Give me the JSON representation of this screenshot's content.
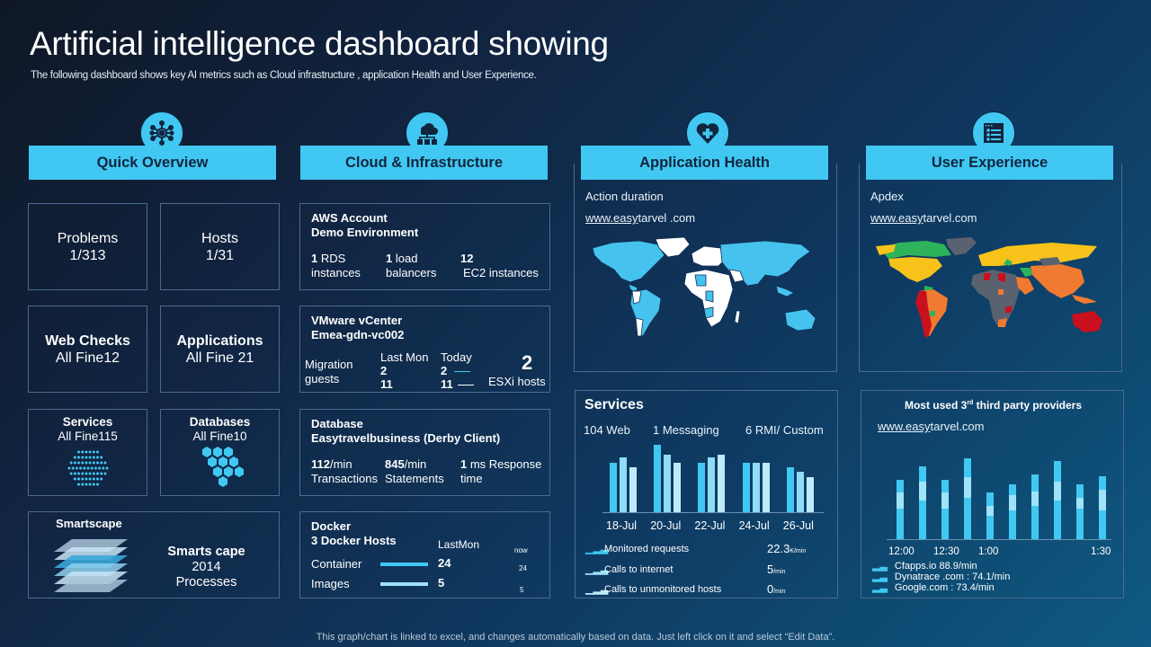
{
  "header": {
    "title": "Artificial intelligence dashboard showing",
    "subtitle": "The following dashboard shows key AI  metrics such as Cloud infrastructure , application Health and User Experience."
  },
  "sections": {
    "quick_overview": {
      "label": "Quick Overview",
      "icon": "network-hub-icon"
    },
    "cloud": {
      "label": "Cloud & Infrastructure",
      "icon": "cloud-network-icon"
    },
    "app_health": {
      "label": "Application Health",
      "icon": "heart-plus-icon"
    },
    "user_experience": {
      "label": "User Experience",
      "icon": "list-document-icon"
    }
  },
  "quick_overview": {
    "problems": {
      "label": "Problems",
      "value": "1/313"
    },
    "hosts": {
      "label": "Hosts",
      "value": "1/31"
    },
    "web_checks": {
      "label": "Web Checks",
      "value": "All Fine12"
    },
    "applications": {
      "label": "Applications",
      "value": "All Fine 21"
    },
    "services": {
      "label": "Services",
      "value": "All Fine115"
    },
    "databases": {
      "label": "Databases",
      "value": "All Fine10"
    },
    "smartscape": {
      "heading": "Smartscape",
      "label": "Smarts cape",
      "value": "2014",
      "unit": "Processes"
    }
  },
  "cloud": {
    "aws": {
      "title1": "AWS Account",
      "title2": "Demo Environment",
      "metrics": [
        {
          "num": "1",
          "text1": " RDS",
          "text2": "instances"
        },
        {
          "num": "1",
          "text1": " load",
          "text2": "balancers"
        },
        {
          "num": "12",
          "text1": "",
          "text2": "EC2 instances"
        }
      ]
    },
    "vmware": {
      "title1": "VMware vCenter",
      "title2": "Emea-gdn-vc002",
      "migration_label1": "Migration",
      "migration_label2": "guests",
      "last_mon_label": "Last Mon",
      "last_mon_v1": "2",
      "last_mon_v2": "11",
      "today_label": "Today",
      "today_v1": "2",
      "today_v2": "11",
      "esxi_value": "2",
      "esxi_label": "ESXi hosts"
    },
    "database": {
      "title1": "Database",
      "title2": "Easytravelbusiness  (Derby Client)",
      "metrics": [
        {
          "num": "112",
          "unit": "/min",
          "label": "Transactions"
        },
        {
          "num": "845",
          "unit": "/min",
          "label": "Statements"
        },
        {
          "num": "1",
          "unit": " ms Response",
          "label": "time"
        }
      ]
    },
    "docker": {
      "title1": "Docker",
      "title2": "3 Docker Hosts",
      "last_mon_label": "LastMon",
      "now_label": "now",
      "rows": [
        {
          "label": "Container",
          "last_mon": "24",
          "now": "24"
        },
        {
          "label": "Images",
          "last_mon": "5",
          "now": "5"
        }
      ]
    }
  },
  "app_health": {
    "metric": "Action duration",
    "site_underlined": "www.easy",
    "site_rest": "tarvel   .com",
    "map_colors": {
      "highlight": "#45c3ee",
      "base": "#ffffff"
    }
  },
  "user_experience": {
    "metric": "Apdex",
    "site_underlined": "www.easy",
    "site_rest": "tarvel.com",
    "map_colors": {
      "satisfied": "#f7c21a",
      "excellent": "#2db35a",
      "fair": "#f07a30",
      "poor": "#c8101f",
      "unknown": "#5a6270"
    }
  },
  "services_panel": {
    "title": "Services",
    "counts": [
      "104  Web",
      "1 Messaging",
      "6 RMI/ Custom"
    ],
    "stats": [
      {
        "label": "Monitored requests",
        "value": "22.3",
        "unit": "K/min"
      },
      {
        "label": "Calls to internet",
        "value": "5",
        "unit": "/min"
      },
      {
        "label": "Calls to unmonitored hosts",
        "value": "0",
        "unit": "/min"
      }
    ]
  },
  "third_party": {
    "title_pre": "Most used 3",
    "title_sup": "rd",
    "title_post": " third party providers",
    "site_underlined": "www.easy",
    "site_rest": "tarvel.com",
    "legend": [
      "Cfapps.io 88.9/min",
      "Dynatrace .com : 74.1/min",
      "Google.com : 73.4/min"
    ]
  },
  "chart_data": [
    {
      "type": "bar",
      "title": "Services",
      "categories": [
        "18-Jul",
        "20-Jul",
        "22-Jul",
        "24-Jul",
        "26-Jul"
      ],
      "series": [
        {
          "name": "Web",
          "color": "#40c8f2",
          "values": [
            55,
            75,
            55,
            55,
            50
          ]
        },
        {
          "name": "Messaging",
          "color": "#8fdcf7",
          "values": [
            61,
            64,
            61,
            55,
            45
          ]
        },
        {
          "name": "RMI/Custom",
          "color": "#bfeafb",
          "values": [
            50,
            55,
            64,
            55,
            39
          ]
        }
      ],
      "ylim": [
        0,
        80
      ]
    },
    {
      "type": "bar",
      "stacked": true,
      "title": "Most used 3rd third party providers",
      "categories": [
        "12:00",
        "",
        "12:30",
        "",
        "1:00",
        "",
        "",
        "",
        "",
        "1:30"
      ],
      "tick_labels": [
        "12:00",
        "12:30",
        "1:00",
        "1:30"
      ],
      "series": [
        {
          "name": "Cfapps.io",
          "color": "#40c8f2",
          "values": [
            34,
            43,
            34,
            46,
            26,
            32,
            37,
            43,
            34,
            32
          ]
        },
        {
          "name": "Dynatrace.com",
          "color": "#9ee3f8",
          "values": [
            18,
            21,
            18,
            23,
            11,
            17,
            16,
            21,
            12,
            23
          ]
        },
        {
          "name": "Google.com",
          "color": "#40c8f2",
          "values": [
            14,
            17,
            14,
            21,
            15,
            12,
            19,
            23,
            15,
            15
          ]
        }
      ]
    }
  ],
  "footer": "This graph/chart is linked to excel,  and changes automatically based on data. Just left click on it and select “Edit Data”."
}
